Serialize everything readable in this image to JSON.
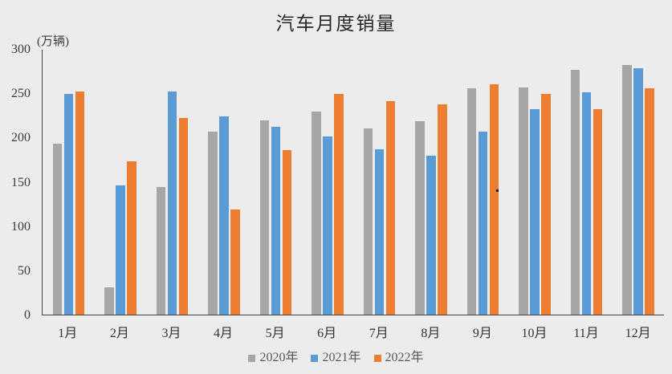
{
  "chart_data": {
    "type": "bar",
    "title": "汽车月度销量",
    "unit_label": "(万辆)",
    "xlabel": "",
    "ylabel": "万辆",
    "ylim": [
      0,
      300
    ],
    "yticks": [
      0,
      50,
      100,
      150,
      200,
      250,
      300
    ],
    "grid": false,
    "legend_position": "bottom",
    "categories": [
      "1月",
      "2月",
      "3月",
      "4月",
      "5月",
      "6月",
      "7月",
      "8月",
      "9月",
      "10月",
      "11月",
      "12月"
    ],
    "series": [
      {
        "name": "2020年",
        "color": "#a6a6a6",
        "values": [
          194,
          31,
          145,
          207,
          220,
          230,
          211,
          219,
          256,
          257,
          277,
          283
        ]
      },
      {
        "name": "2021年",
        "color": "#5b9bd5",
        "values": [
          250,
          146,
          253,
          225,
          213,
          202,
          187,
          180,
          207,
          233,
          252,
          279
        ]
      },
      {
        "name": "2022年",
        "color": "#ed7d31",
        "values": [
          253,
          174,
          223,
          119,
          186,
          250,
          242,
          238,
          261,
          250,
          233,
          256
        ]
      }
    ]
  },
  "colors": {
    "background": "#ececec",
    "axis_line": "#404040",
    "tick_text": "#3b3b3b",
    "legend_text": "#595959",
    "title_text": "#262626",
    "artifact_dot": "#1a1a1a"
  }
}
